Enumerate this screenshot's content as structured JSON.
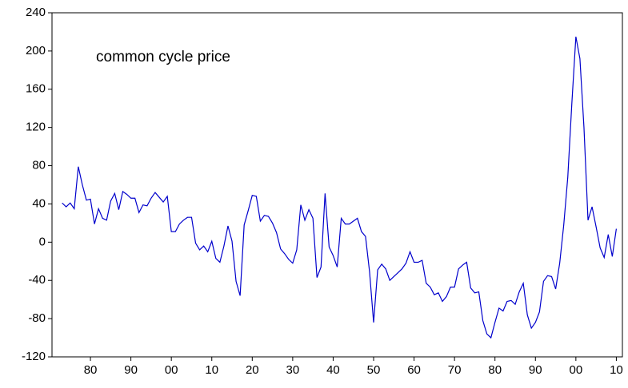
{
  "chart_data": {
    "type": "line",
    "annotation": "common cycle price",
    "x": [
      1873,
      1874,
      1875,
      1876,
      1877,
      1878,
      1879,
      1880,
      1881,
      1882,
      1883,
      1884,
      1885,
      1886,
      1887,
      1888,
      1889,
      1890,
      1891,
      1892,
      1893,
      1894,
      1895,
      1896,
      1897,
      1898,
      1899,
      1900,
      1901,
      1902,
      1903,
      1904,
      1905,
      1906,
      1907,
      1908,
      1909,
      1910,
      1911,
      1912,
      1913,
      1914,
      1915,
      1916,
      1917,
      1918,
      1919,
      1920,
      1921,
      1922,
      1923,
      1924,
      1925,
      1926,
      1927,
      1928,
      1929,
      1930,
      1931,
      1932,
      1933,
      1934,
      1935,
      1936,
      1937,
      1938,
      1939,
      1940,
      1941,
      1942,
      1943,
      1944,
      1945,
      1946,
      1947,
      1948,
      1949,
      1950,
      1951,
      1952,
      1953,
      1954,
      1955,
      1956,
      1957,
      1958,
      1959,
      1960,
      1961,
      1962,
      1963,
      1964,
      1965,
      1966,
      1967,
      1968,
      1969,
      1970,
      1971,
      1972,
      1973,
      1974,
      1975,
      1976,
      1977,
      1978,
      1979,
      1980,
      1981,
      1982,
      1983,
      1984,
      1985,
      1986,
      1987,
      1988,
      1989,
      1990,
      1991,
      1992,
      1993,
      1994,
      1995,
      1996,
      1997,
      1998,
      1999,
      2000,
      2001,
      2002,
      2003,
      2004,
      2005,
      2006,
      2007,
      2008,
      2009,
      2010
    ],
    "series": [
      {
        "color": "#0000cc",
        "values": [
          41,
          37,
          41,
          35,
          79,
          60,
          44,
          45,
          19,
          35,
          25,
          23,
          43,
          51,
          34,
          53,
          50,
          46,
          46,
          31,
          39,
          38,
          46,
          52,
          47,
          42,
          48,
          11,
          11,
          19,
          23,
          26,
          26,
          -1,
          -8,
          -4,
          -10,
          1,
          -17,
          -21,
          -4,
          17,
          1,
          -41,
          -56,
          18,
          33,
          49,
          48,
          22,
          28,
          27,
          20,
          10,
          -7,
          -12,
          -18,
          -22,
          -8,
          39,
          23,
          34,
          25,
          -37,
          -26,
          51,
          -5,
          -14,
          -26,
          25,
          19,
          19,
          22,
          25,
          11,
          6,
          -31,
          -84,
          -29,
          -23,
          -28,
          -40,
          -36,
          -32,
          -28,
          -22,
          -10,
          -21,
          -21,
          -19,
          -43,
          -47,
          -55,
          -53,
          -62,
          -57,
          -47,
          -47,
          -28,
          -24,
          -21,
          -48,
          -53,
          -52,
          -82,
          -96,
          -100,
          -84,
          -69,
          -72,
          -62,
          -61,
          -65,
          -52,
          -43,
          -76,
          -90,
          -84,
          -73,
          -41,
          -35,
          -36,
          -49,
          -22,
          18,
          68,
          145,
          215,
          192,
          120,
          23,
          37,
          16,
          -6,
          -16,
          8,
          -15,
          14
        ]
      }
    ],
    "xlim": [
      1870.5,
      2011.5
    ],
    "xticks": [
      {
        "value": 1880,
        "label": "80"
      },
      {
        "value": 1890,
        "label": "90"
      },
      {
        "value": 1900,
        "label": "00"
      },
      {
        "value": 1910,
        "label": "10"
      },
      {
        "value": 1920,
        "label": "20"
      },
      {
        "value": 1930,
        "label": "30"
      },
      {
        "value": 1940,
        "label": "40"
      },
      {
        "value": 1950,
        "label": "50"
      },
      {
        "value": 1960,
        "label": "60"
      },
      {
        "value": 1970,
        "label": "70"
      },
      {
        "value": 1980,
        "label": "80"
      },
      {
        "value": 1990,
        "label": "90"
      },
      {
        "value": 2000,
        "label": "00"
      },
      {
        "value": 2010,
        "label": "10"
      }
    ],
    "ylim": [
      -120,
      240
    ],
    "yticks": [
      -120,
      -80,
      -40,
      0,
      40,
      80,
      120,
      160,
      200,
      240
    ]
  }
}
